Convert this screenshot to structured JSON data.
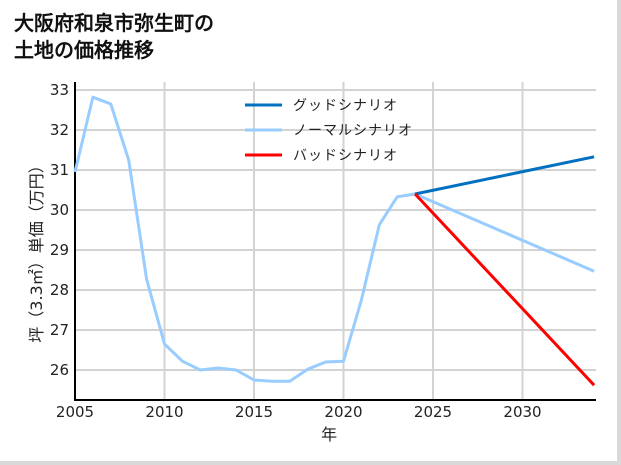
{
  "title_line1": "大阪府和泉市弥生町の",
  "title_line2": "土地の価格推移",
  "chart_data": {
    "type": "line",
    "title": "大阪府和泉市弥生町の土地の価格推移",
    "xlabel": "年",
    "ylabel": "坪（3.3㎡）単価（万円）",
    "xlim": [
      2005,
      2034
    ],
    "ylim": [
      25.3,
      33.2
    ],
    "xticks": [
      2005,
      2010,
      2015,
      2020,
      2025,
      2030
    ],
    "yticks": [
      26,
      27,
      28,
      29,
      30,
      31,
      32,
      33
    ],
    "grid": true,
    "legend_position": "upper center",
    "series": [
      {
        "name": "グッドシナリオ",
        "color": "#0070c0",
        "x": [
          2024,
          2034
        ],
        "values": [
          30.4,
          31.33
        ]
      },
      {
        "name": "ノーマルシナリオ",
        "color": "#99ccff",
        "x": [
          2005,
          2006,
          2007,
          2008,
          2009,
          2010,
          2011,
          2012,
          2013,
          2014,
          2015,
          2016,
          2017,
          2018,
          2019,
          2020,
          2021,
          2022,
          2023,
          2024,
          2034
        ],
        "values": [
          30.95,
          32.82,
          32.65,
          31.25,
          28.27,
          26.65,
          26.22,
          26.0,
          26.05,
          26.0,
          25.75,
          25.72,
          25.72,
          26.02,
          26.2,
          26.22,
          27.75,
          29.63,
          30.33,
          30.4,
          28.47
        ]
      },
      {
        "name": "バッドシナリオ",
        "color": "#ff0000",
        "x": [
          2024,
          2034
        ],
        "values": [
          30.4,
          25.62
        ]
      }
    ]
  }
}
